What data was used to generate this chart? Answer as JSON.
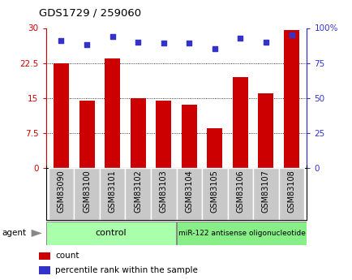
{
  "title": "GDS1729 / 259060",
  "categories": [
    "GSM83090",
    "GSM83100",
    "GSM83101",
    "GSM83102",
    "GSM83103",
    "GSM83104",
    "GSM83105",
    "GSM83106",
    "GSM83107",
    "GSM83108"
  ],
  "counts": [
    22.5,
    14.5,
    23.5,
    15.0,
    14.5,
    13.5,
    8.5,
    19.5,
    16.0,
    29.5
  ],
  "percentile_ranks": [
    91,
    88,
    94,
    90,
    89,
    89,
    85,
    93,
    90,
    95
  ],
  "bar_color": "#cc0000",
  "dot_color": "#3333cc",
  "ylim_left": [
    0,
    30
  ],
  "ylim_right": [
    0,
    100
  ],
  "yticks_left": [
    0,
    7.5,
    15,
    22.5,
    30
  ],
  "yticks_right": [
    0,
    25,
    50,
    75,
    100
  ],
  "ytick_labels_left": [
    "0",
    "7.5",
    "15",
    "22.5",
    "30"
  ],
  "ytick_labels_right": [
    "0",
    "25",
    "50",
    "75",
    "100%"
  ],
  "control_label": "control",
  "treatment_label": "miR-122 antisense oligonucleotide",
  "agent_label": "agent",
  "legend_count_label": "count",
  "legend_pct_label": "percentile rank within the sample",
  "control_color": "#aaffaa",
  "treatment_color": "#88ee88",
  "ticklabel_bg": "#c8c8c8",
  "left_axis_color": "#cc0000",
  "right_axis_color": "#3333cc",
  "spine_color": "#000000"
}
